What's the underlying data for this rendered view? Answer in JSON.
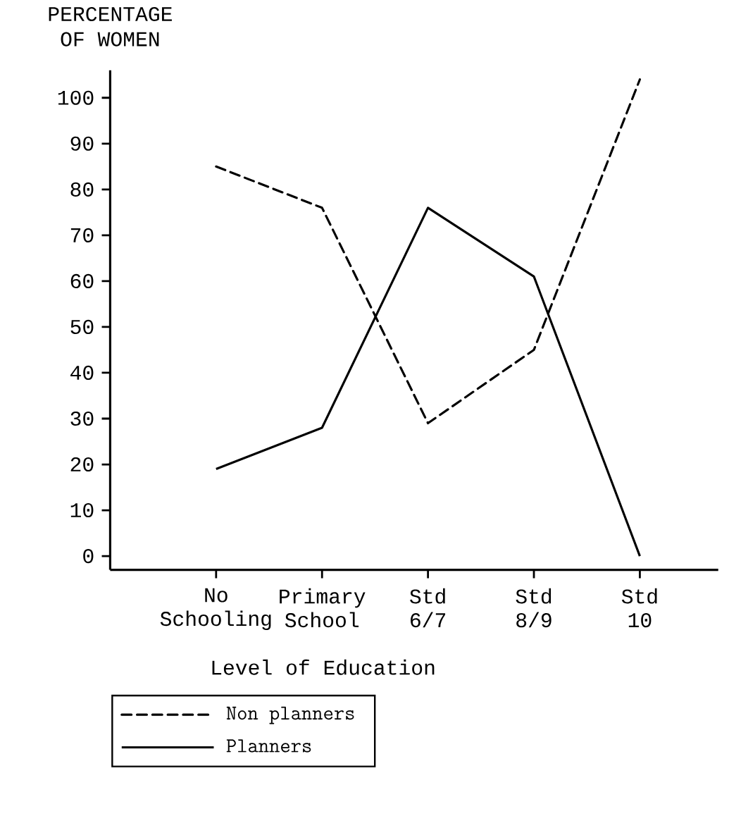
{
  "chart_data": {
    "type": "line",
    "ylabel": "PERCENTAGE OF WOMEN",
    "xlabel": "Level of Education",
    "categories": [
      "No Schooling",
      "Primary School",
      "Std 6/7",
      "Std 8/9",
      "Std 10"
    ],
    "series": [
      {
        "name": "Non planners",
        "color": "#000000",
        "line_style": "dashed",
        "values": [
          85,
          76,
          29,
          45,
          104
        ]
      },
      {
        "name": "Planners",
        "color": "#000000",
        "line_style": "solid",
        "values": [
          19,
          28,
          76,
          61,
          0
        ]
      }
    ],
    "ylim": [
      -3,
      106
    ],
    "yticks": [
      0,
      10,
      20,
      30,
      40,
      50,
      60,
      70,
      80,
      90,
      100
    ],
    "grid": false,
    "legend": "bottom left",
    "marker": "none"
  }
}
